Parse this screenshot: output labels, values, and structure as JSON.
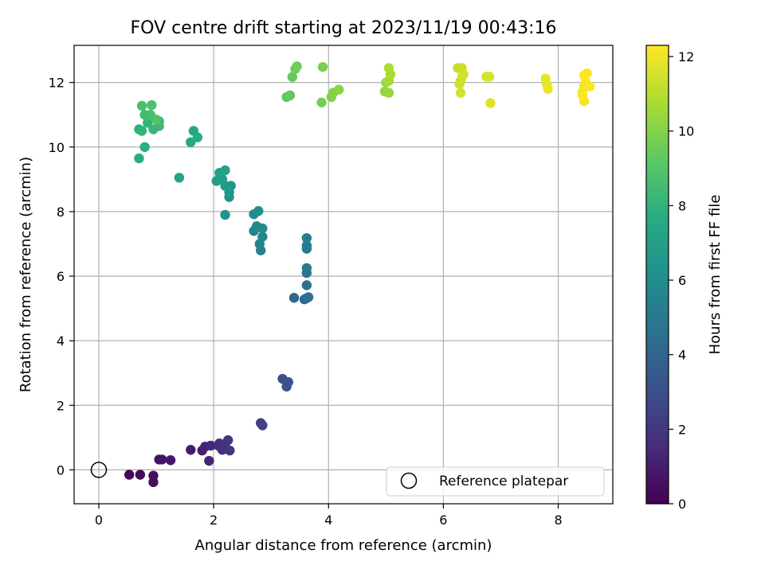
{
  "chart_data": {
    "type": "scatter",
    "title": "FOV centre drift starting at 2023/11/19 00:43:16",
    "xlabel": "Angular distance from reference (arcmin)",
    "ylabel": "Rotation from reference (arcmin)",
    "xlim": [
      -0.43,
      8.95
    ],
    "ylim": [
      -1.05,
      13.15
    ],
    "xticks": [
      0,
      2,
      4,
      6,
      8
    ],
    "yticks": [
      0,
      2,
      4,
      6,
      8,
      10,
      12
    ],
    "grid": true,
    "colorbar": {
      "label": "Hours from first FF file",
      "colormap": "viridis",
      "range": [
        0,
        12.3
      ],
      "ticks": [
        0,
        2,
        4,
        6,
        8,
        10,
        12
      ]
    },
    "legend": {
      "position": "bottom-right",
      "entries": [
        {
          "label": "Reference platepar",
          "marker": "open-circle"
        }
      ]
    },
    "reference_point": {
      "x": 0,
      "y": 0
    },
    "points": [
      {
        "x": 0.53,
        "y": -0.15,
        "t": 0.2
      },
      {
        "x": 0.72,
        "y": -0.15,
        "t": 0.3
      },
      {
        "x": 0.95,
        "y": -0.18,
        "t": 0.4
      },
      {
        "x": 0.95,
        "y": -0.38,
        "t": 0.5
      },
      {
        "x": 1.05,
        "y": 0.32,
        "t": 0.6
      },
      {
        "x": 1.1,
        "y": 0.32,
        "t": 0.7
      },
      {
        "x": 1.25,
        "y": 0.3,
        "t": 0.8
      },
      {
        "x": 1.6,
        "y": 0.62,
        "t": 1.0
      },
      {
        "x": 1.8,
        "y": 0.6,
        "t": 1.1
      },
      {
        "x": 1.85,
        "y": 0.72,
        "t": 1.2
      },
      {
        "x": 1.92,
        "y": 0.28,
        "t": 1.3
      },
      {
        "x": 1.95,
        "y": 0.75,
        "t": 1.4
      },
      {
        "x": 2.08,
        "y": 0.75,
        "t": 1.5
      },
      {
        "x": 2.1,
        "y": 0.82,
        "t": 1.6
      },
      {
        "x": 2.15,
        "y": 0.62,
        "t": 1.7
      },
      {
        "x": 2.2,
        "y": 0.7,
        "t": 1.8
      },
      {
        "x": 2.25,
        "y": 0.92,
        "t": 1.9
      },
      {
        "x": 2.28,
        "y": 0.6,
        "t": 2.0
      },
      {
        "x": 2.82,
        "y": 1.45,
        "t": 2.3
      },
      {
        "x": 2.85,
        "y": 1.38,
        "t": 2.4
      },
      {
        "x": 3.2,
        "y": 2.82,
        "t": 3.0
      },
      {
        "x": 3.3,
        "y": 2.72,
        "t": 3.1
      },
      {
        "x": 3.27,
        "y": 2.58,
        "t": 3.2
      },
      {
        "x": 3.4,
        "y": 5.33,
        "t": 4.2
      },
      {
        "x": 3.58,
        "y": 5.28,
        "t": 4.3
      },
      {
        "x": 3.62,
        "y": 5.32,
        "t": 4.4
      },
      {
        "x": 3.65,
        "y": 5.35,
        "t": 4.5
      },
      {
        "x": 3.62,
        "y": 5.72,
        "t": 4.6
      },
      {
        "x": 3.62,
        "y": 6.1,
        "t": 4.8
      },
      {
        "x": 3.62,
        "y": 6.25,
        "t": 4.9
      },
      {
        "x": 3.62,
        "y": 6.85,
        "t": 5.0
      },
      {
        "x": 3.62,
        "y": 6.95,
        "t": 5.1
      },
      {
        "x": 3.62,
        "y": 7.18,
        "t": 5.2
      },
      {
        "x": 2.82,
        "y": 6.8,
        "t": 5.4
      },
      {
        "x": 2.8,
        "y": 7.0,
        "t": 5.5
      },
      {
        "x": 2.85,
        "y": 7.22,
        "t": 5.6
      },
      {
        "x": 2.7,
        "y": 7.4,
        "t": 5.7
      },
      {
        "x": 2.75,
        "y": 7.55,
        "t": 5.8
      },
      {
        "x": 2.85,
        "y": 7.48,
        "t": 5.9
      },
      {
        "x": 2.7,
        "y": 7.92,
        "t": 6.0
      },
      {
        "x": 2.78,
        "y": 8.02,
        "t": 6.1
      },
      {
        "x": 2.2,
        "y": 7.9,
        "t": 6.3
      },
      {
        "x": 2.27,
        "y": 8.45,
        "t": 6.4
      },
      {
        "x": 2.27,
        "y": 8.6,
        "t": 6.5
      },
      {
        "x": 2.3,
        "y": 8.8,
        "t": 6.6
      },
      {
        "x": 2.2,
        "y": 8.8,
        "t": 6.7
      },
      {
        "x": 2.05,
        "y": 8.95,
        "t": 6.8
      },
      {
        "x": 2.15,
        "y": 9.0,
        "t": 6.9
      },
      {
        "x": 2.1,
        "y": 9.2,
        "t": 7.0
      },
      {
        "x": 2.2,
        "y": 9.28,
        "t": 7.1
      },
      {
        "x": 1.4,
        "y": 9.05,
        "t": 7.2
      },
      {
        "x": 1.6,
        "y": 10.15,
        "t": 7.4
      },
      {
        "x": 1.65,
        "y": 10.5,
        "t": 7.5
      },
      {
        "x": 1.72,
        "y": 10.3,
        "t": 7.6
      },
      {
        "x": 0.7,
        "y": 9.65,
        "t": 7.7
      },
      {
        "x": 0.8,
        "y": 10.0,
        "t": 7.8
      },
      {
        "x": 0.7,
        "y": 10.55,
        "t": 7.9
      },
      {
        "x": 0.75,
        "y": 10.5,
        "t": 8.0
      },
      {
        "x": 0.85,
        "y": 10.75,
        "t": 8.1
      },
      {
        "x": 0.95,
        "y": 10.55,
        "t": 8.2
      },
      {
        "x": 1.05,
        "y": 10.65,
        "t": 8.3
      },
      {
        "x": 1.05,
        "y": 10.8,
        "t": 8.4
      },
      {
        "x": 0.8,
        "y": 11.0,
        "t": 8.5
      },
      {
        "x": 0.9,
        "y": 11.0,
        "t": 8.6
      },
      {
        "x": 0.75,
        "y": 11.28,
        "t": 8.7
      },
      {
        "x": 0.92,
        "y": 11.3,
        "t": 8.8
      },
      {
        "x": 1.0,
        "y": 10.85,
        "t": 8.9
      },
      {
        "x": 3.27,
        "y": 11.55,
        "t": 9.2
      },
      {
        "x": 3.33,
        "y": 11.6,
        "t": 9.3
      },
      {
        "x": 3.37,
        "y": 12.17,
        "t": 9.4
      },
      {
        "x": 3.42,
        "y": 12.42,
        "t": 9.5
      },
      {
        "x": 3.45,
        "y": 12.5,
        "t": 9.6
      },
      {
        "x": 3.88,
        "y": 11.38,
        "t": 9.7
      },
      {
        "x": 3.9,
        "y": 12.48,
        "t": 9.8
      },
      {
        "x": 4.05,
        "y": 11.55,
        "t": 9.9
      },
      {
        "x": 4.08,
        "y": 11.68,
        "t": 10.0
      },
      {
        "x": 4.18,
        "y": 11.78,
        "t": 10.1
      },
      {
        "x": 4.98,
        "y": 11.72,
        "t": 10.3
      },
      {
        "x": 5.05,
        "y": 11.68,
        "t": 10.4
      },
      {
        "x": 5.0,
        "y": 12.0,
        "t": 10.5
      },
      {
        "x": 5.05,
        "y": 12.05,
        "t": 10.6
      },
      {
        "x": 5.08,
        "y": 12.25,
        "t": 10.7
      },
      {
        "x": 5.05,
        "y": 12.45,
        "t": 10.8
      },
      {
        "x": 6.25,
        "y": 12.45,
        "t": 11.2
      },
      {
        "x": 6.3,
        "y": 12.05,
        "t": 11.3
      },
      {
        "x": 6.32,
        "y": 12.45,
        "t": 11.3
      },
      {
        "x": 6.28,
        "y": 11.95,
        "t": 11.4
      },
      {
        "x": 6.33,
        "y": 12.2,
        "t": 11.4
      },
      {
        "x": 6.3,
        "y": 11.68,
        "t": 11.5
      },
      {
        "x": 6.35,
        "y": 12.25,
        "t": 11.5
      },
      {
        "x": 6.75,
        "y": 12.18,
        "t": 11.6
      },
      {
        "x": 6.8,
        "y": 12.18,
        "t": 11.6
      },
      {
        "x": 6.82,
        "y": 11.36,
        "t": 11.7
      },
      {
        "x": 7.78,
        "y": 12.12,
        "t": 11.9
      },
      {
        "x": 7.8,
        "y": 11.95,
        "t": 11.9
      },
      {
        "x": 7.82,
        "y": 11.8,
        "t": 12.0
      },
      {
        "x": 8.42,
        "y": 11.7,
        "t": 12.1
      },
      {
        "x": 8.45,
        "y": 11.42,
        "t": 12.1
      },
      {
        "x": 8.45,
        "y": 11.9,
        "t": 12.1
      },
      {
        "x": 8.48,
        "y": 12.0,
        "t": 12.2
      },
      {
        "x": 8.5,
        "y": 12.28,
        "t": 12.2
      },
      {
        "x": 8.55,
        "y": 11.88,
        "t": 12.2
      },
      {
        "x": 8.45,
        "y": 12.22,
        "t": 12.3
      },
      {
        "x": 8.42,
        "y": 11.6,
        "t": 12.3
      }
    ]
  }
}
